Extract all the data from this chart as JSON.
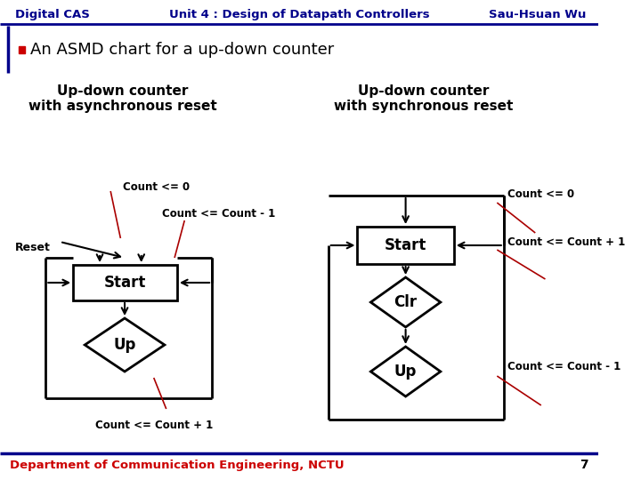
{
  "title_left": "Digital CAS",
  "title_center": "Unit 4 : Design of Datapath Controllers",
  "title_right": "Sau-Hsuan Wu",
  "bullet_text": "An ASMD chart for a up-down counter",
  "left_title_line1": "Up-down counter",
  "left_title_line2": "with asynchronous reset",
  "right_title_line1": "Up-down counter",
  "right_title_line2": "with synchronous reset",
  "footer": "Department of Communication Engineering, NCTU",
  "page_num": "7",
  "bg_color": "#ffffff",
  "header_text_color": "#00008B",
  "bullet_red_color": "#CC0000",
  "diagram_black": "#000000",
  "red_line_color": "#AA0000",
  "footer_color": "#CC0000",
  "header_line_color": "#00008B"
}
